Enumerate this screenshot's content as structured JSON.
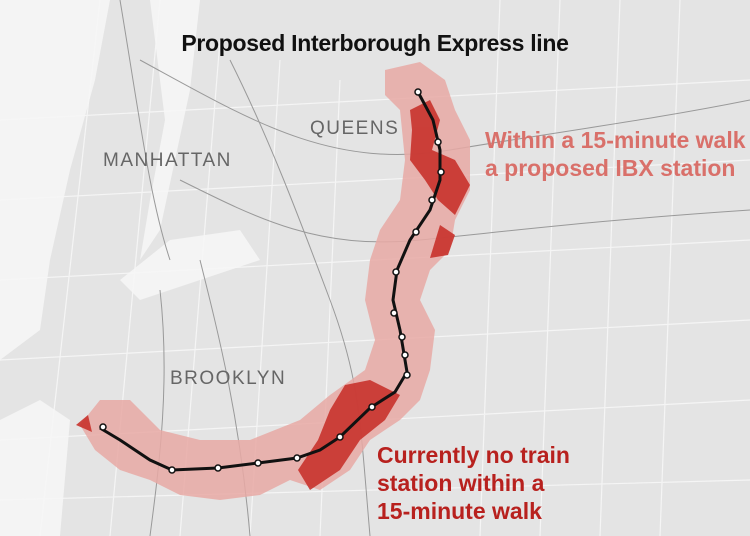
{
  "title": "Proposed Interborough Express line",
  "boroughs": [
    "QUEENS",
    "MANHATTAN",
    "BROOKLYN"
  ],
  "legend": {
    "walk_zone": {
      "lines": [
        "Within a 15-minute walk of",
        "a proposed IBX station"
      ],
      "color": "#d9706a"
    },
    "no_train": {
      "lines": [
        "Currently no train",
        "station within a",
        "15-minute walk"
      ],
      "color": "#b8211e"
    }
  },
  "colors": {
    "land": "#e4e4e4",
    "water": "#f4f4f4",
    "buffer": "#e8a9a4",
    "underserved": "#c8322c",
    "line": "#111111"
  }
}
